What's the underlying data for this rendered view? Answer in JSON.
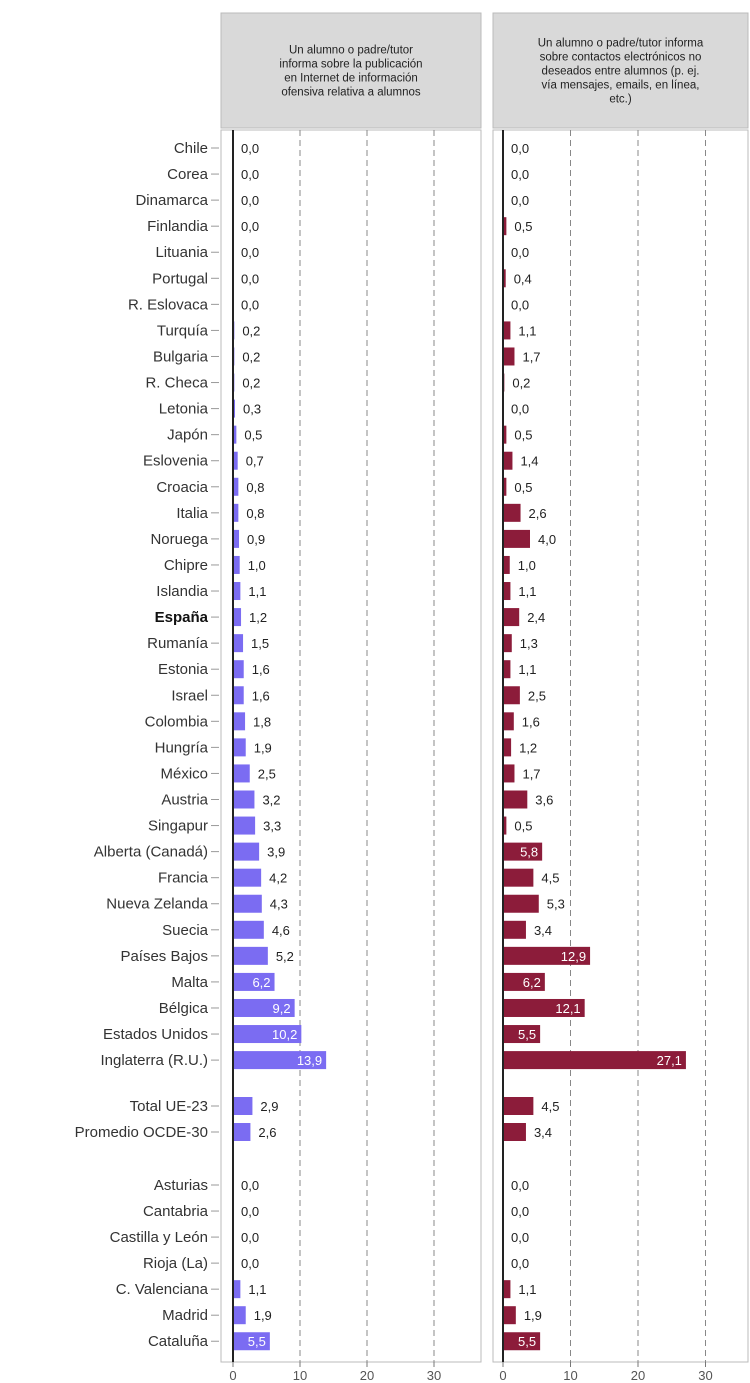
{
  "chart_data": {
    "type": "bar",
    "orientation": "horizontal",
    "categories": [
      "Chile",
      "Corea",
      "Dinamarca",
      "Finlandia",
      "Lituania",
      "Portugal",
      "R. Eslovaca",
      "Turquía",
      "Bulgaria",
      "R. Checa",
      "Letonia",
      "Japón",
      "Eslovenia",
      "Croacia",
      "Italia",
      "Noruega",
      "Chipre",
      "Islandia",
      "España",
      "Rumanía",
      "Estonia",
      "Israel",
      "Colombia",
      "Hungría",
      "México",
      "Austria",
      "Singapur",
      "Alberta (Canadá)",
      "Francia",
      "Nueva Zelanda",
      "Suecia",
      "Países Bajos",
      "Malta",
      "Bélgica",
      "Estados Unidos",
      "Inglaterra (R.U.)",
      "Total UE-23",
      "Promedio OCDE-30",
      "Asturias",
      "Cantabria",
      "Castilla y León",
      "Rioja (La)",
      "C. Valenciana",
      "Madrid",
      "Cataluña"
    ],
    "highlight_category": "España",
    "series": [
      {
        "header": "Un alumno o padre/tutor informa sobre la publicación en Internet de información ofensiva relativa a alumnos",
        "color": "#7b6cf2",
        "values": [
          0.0,
          0.0,
          0.0,
          0.0,
          0.0,
          0.0,
          0.0,
          0.2,
          0.2,
          0.2,
          0.3,
          0.5,
          0.7,
          0.8,
          0.8,
          0.9,
          1.0,
          1.1,
          1.2,
          1.5,
          1.6,
          1.6,
          1.8,
          1.9,
          2.5,
          3.2,
          3.3,
          3.9,
          4.2,
          4.3,
          4.6,
          5.2,
          6.2,
          9.2,
          10.2,
          13.9,
          2.9,
          2.6,
          0.0,
          0.0,
          0.0,
          0.0,
          1.1,
          1.9,
          5.5
        ],
        "labels": [
          "0,0",
          "0,0",
          "0,0",
          "0,0",
          "0,0",
          "0,0",
          "0,0",
          "0,2",
          "0,2",
          "0,2",
          "0,3",
          "0,5",
          "0,7",
          "0,8",
          "0,8",
          "0,9",
          "1,0",
          "1,1",
          "1,2",
          "1,5",
          "1,6",
          "1,6",
          "1,8",
          "1,9",
          "2,5",
          "3,2",
          "3,3",
          "3,9",
          "4,2",
          "4,3",
          "4,6",
          "5,2",
          "6,2",
          "9,2",
          "10,2",
          "13,9",
          "2,9",
          "2,6",
          "0,0",
          "0,0",
          "0,0",
          "0,0",
          "1,1",
          "1,9",
          "5,5"
        ]
      },
      {
        "header": "Un alumno o padre/tutor informa sobre contactos electrónicos no deseados entre alumnos (p. ej. vía mensajes, emails, en línea, etc.)",
        "color": "#8c1c3a",
        "values": [
          0.0,
          0.0,
          0.0,
          0.5,
          0.0,
          0.4,
          0.0,
          1.1,
          1.7,
          0.2,
          0.0,
          0.5,
          1.4,
          0.5,
          2.6,
          4.0,
          1.0,
          1.1,
          2.4,
          1.3,
          1.1,
          2.5,
          1.6,
          1.2,
          1.7,
          3.6,
          0.5,
          5.8,
          4.5,
          5.3,
          3.4,
          12.9,
          6.2,
          12.1,
          5.5,
          27.1,
          4.5,
          3.4,
          0.0,
          0.0,
          0.0,
          0.0,
          1.1,
          1.9,
          5.5
        ],
        "labels": [
          "0,0",
          "0,0",
          "0,0",
          "0,5",
          "0,0",
          "0,4",
          "0,0",
          "1,1",
          "1,7",
          "0,2",
          "0,0",
          "0,5",
          "1,4",
          "0,5",
          "2,6",
          "4,0",
          "1,0",
          "1,1",
          "2,4",
          "1,3",
          "1,1",
          "2,5",
          "1,6",
          "1,2",
          "1,7",
          "3,6",
          "0,5",
          "5,8",
          "4,5",
          "5,3",
          "3,4",
          "12,9",
          "6,2",
          "12,1",
          "5,5",
          "27,1",
          "4,5",
          "3,4",
          "0,0",
          "0,0",
          "0,0",
          "0,0",
          "1,1",
          "1,9",
          "5,5"
        ]
      }
    ],
    "xlim": [
      0,
      36
    ],
    "x_ticks": [
      0,
      10,
      20,
      30
    ],
    "x_tick_labels": [
      "0",
      "10",
      "20",
      "30"
    ],
    "grid": "vertical dashed at 10, 20, 30",
    "legend": "none (panel headers)"
  },
  "colors": {
    "header_bg": "#d9d9d9",
    "grid": "#888888",
    "axis": "#222222",
    "panel_border": "#bbbbbb"
  }
}
